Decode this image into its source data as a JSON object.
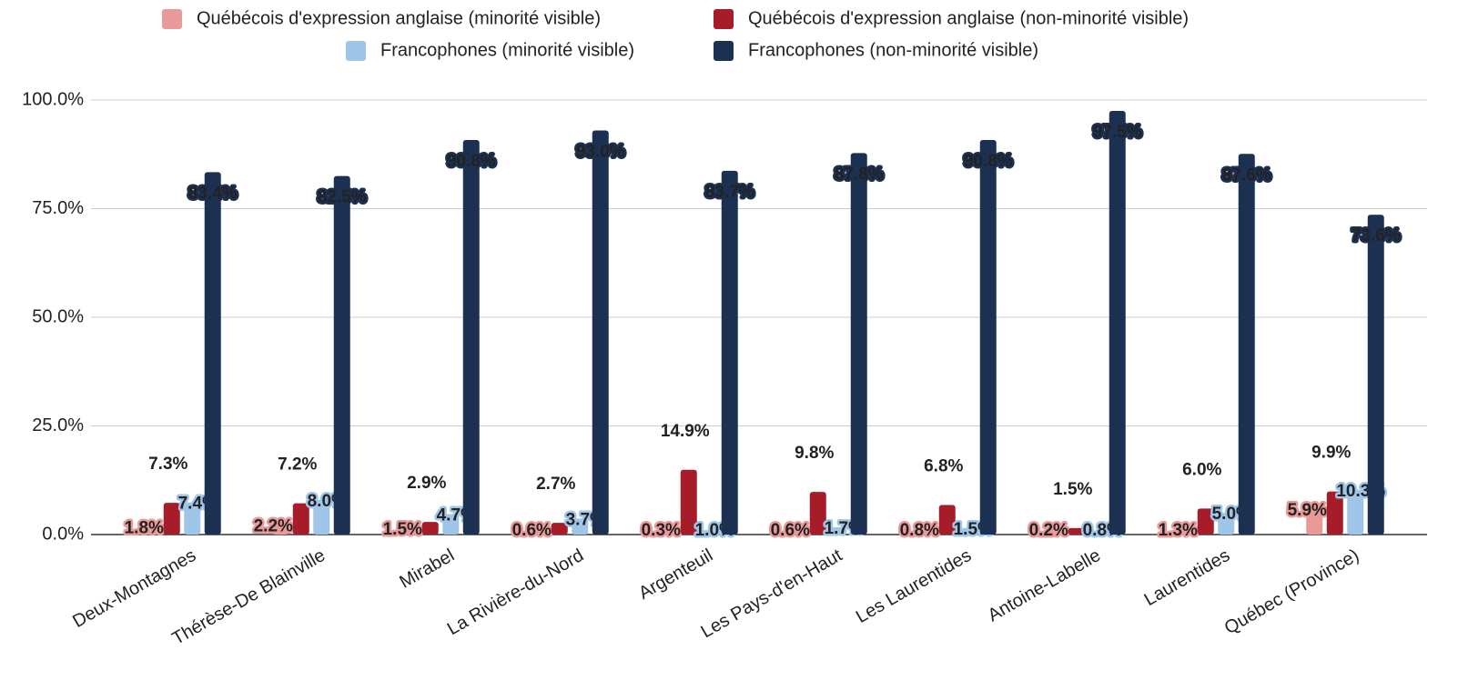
{
  "chart_data": {
    "type": "bar",
    "categories": [
      "Deux-Montagnes",
      "Thérèse-De Blainville",
      "Mirabel",
      "La Rivière-du-Nord",
      "Argenteuil",
      "Les Pays-d'en-Haut",
      "Les Laurentides",
      "Antoine-Labelle",
      "Laurentides",
      "Québec (Province)"
    ],
    "series": [
      {
        "name": "Québécois d'expression anglaise (minorité visible)",
        "color": "#ea9999",
        "values": [
          1.8,
          2.2,
          1.5,
          0.6,
          0.3,
          0.6,
          0.8,
          0.2,
          1.3,
          5.9
        ],
        "value_labels": [
          "1.8%",
          "2.2%",
          "1.5%",
          "0.6%",
          "0.3%",
          "0.6%",
          "0.8%",
          "0.2%",
          "1.3%",
          "5.9%"
        ]
      },
      {
        "name": "Québécois d'expression anglaise (non-minorité visible)",
        "color": "#a61c28",
        "values": [
          7.3,
          7.2,
          2.9,
          2.7,
          14.9,
          9.8,
          6.8,
          1.5,
          6.0,
          9.9
        ],
        "value_labels": [
          "7.3%",
          "7.2%",
          "2.9%",
          "2.7%",
          "14.9%",
          "9.8%",
          "6.8%",
          "1.5%",
          "6.0%",
          "9.9%"
        ]
      },
      {
        "name": "Francophones (minorité visible)",
        "color": "#9fc5e8",
        "values": [
          7.4,
          8.0,
          4.7,
          3.7,
          1.0,
          1.7,
          1.5,
          0.8,
          5.0,
          10.3
        ],
        "value_labels": [
          "7.4%",
          "8.0%",
          "4.7%",
          "3.7%",
          "1.0%",
          "1.7%",
          "1.5%",
          "0.8%",
          "5.0%",
          "10.3%"
        ]
      },
      {
        "name": "Francophones (non-minorité visible)",
        "color": "#1c3152",
        "values": [
          83.4,
          82.5,
          90.8,
          93.0,
          83.7,
          87.8,
          90.8,
          97.5,
          87.6,
          73.6
        ],
        "value_labels": [
          "83.4%",
          "82.5%",
          "90.8%",
          "93.0%",
          "83.7%",
          "87.8%",
          "90.8%",
          "97.5%",
          "87.6%",
          "73.6%"
        ]
      }
    ],
    "ylim": [
      0,
      100
    ],
    "yticks": [
      {
        "value": 0,
        "label": "0.0%"
      },
      {
        "value": 25,
        "label": "25.0%"
      },
      {
        "value": 50,
        "label": "50.0%"
      },
      {
        "value": 75,
        "label": "75.0%"
      },
      {
        "value": 100,
        "label": "100.0%"
      }
    ],
    "grid": true,
    "legend": "top"
  }
}
